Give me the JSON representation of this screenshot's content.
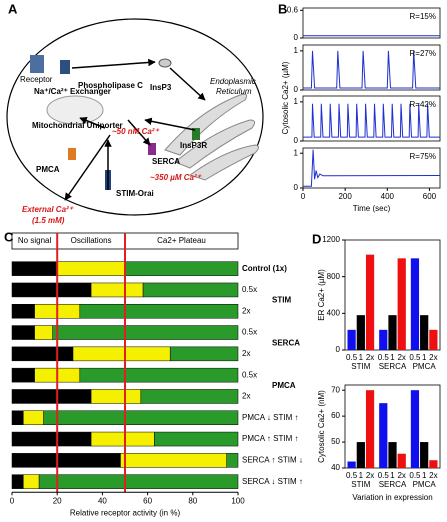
{
  "diagram": {
    "label": "A",
    "receptor": "Receptor",
    "plc": "Phospholipase C",
    "insp3": "InsP3",
    "er": [
      "Endoplasmic",
      "Reticulum"
    ],
    "exchanger": "Na⁺/Ca²⁺ Exchanger",
    "uniporter": "Mitochondrial Uniporter",
    "cyto_ca": "~50 nM Ca²⁺",
    "insp3r": "InsP3R",
    "serca": "SERCA",
    "er_ca": "~350 µM Ca²⁺",
    "pmca": "PMCA",
    "stim": "STIM-Orai",
    "external": [
      "External Ca²⁺",
      "(1.5 mM)"
    ]
  },
  "chart_data": [
    {
      "type": "line",
      "panel_label": "B",
      "xlabel": "Time (sec)",
      "ylabel": "Cytosolic Ca2+ (µM)",
      "xlim": [
        0,
        650
      ],
      "xticks": [
        0,
        200,
        400,
        600
      ],
      "series": [
        {
          "name": "R=15%",
          "color": "#1f2fd0",
          "ylim": [
            0,
            0.65
          ],
          "yticks": [
            0,
            0.6
          ],
          "x": [
            0,
            650
          ],
          "values": [
            0.05,
            0.05
          ]
        },
        {
          "name": "R=27%",
          "color": "#1f2fd0",
          "ylim": [
            0,
            1.15
          ],
          "yticks": [
            0,
            1
          ],
          "x": [
            0,
            40,
            45,
            55,
            160,
            165,
            175,
            280,
            285,
            295,
            400,
            405,
            415,
            520,
            525,
            535,
            650
          ],
          "values": [
            0.05,
            0.05,
            1,
            0.05,
            0.05,
            1,
            0.05,
            0.05,
            1,
            0.05,
            0.05,
            1,
            0.05,
            0.05,
            1,
            0.05,
            0.05
          ]
        },
        {
          "name": "R=42%",
          "color": "#1f2fd0",
          "ylim": [
            0,
            1.15
          ],
          "yticks": [
            0,
            1
          ],
          "x": [
            0,
            42,
            45,
            53,
            84,
            87,
            95,
            126,
            129,
            137,
            168,
            171,
            179,
            210,
            213,
            221,
            252,
            255,
            263,
            294,
            297,
            305,
            336,
            339,
            347,
            378,
            381,
            389,
            420,
            423,
            431,
            462,
            465,
            473,
            504,
            507,
            515,
            546,
            549,
            557,
            588,
            591,
            599,
            650
          ],
          "values": [
            0.1,
            0.1,
            0.95,
            0.1,
            0.1,
            0.95,
            0.1,
            0.1,
            0.95,
            0.1,
            0.1,
            0.95,
            0.1,
            0.1,
            0.95,
            0.1,
            0.1,
            0.95,
            0.1,
            0.1,
            0.95,
            0.1,
            0.1,
            0.95,
            0.1,
            0.1,
            0.95,
            0.1,
            0.1,
            0.95,
            0.1,
            0.1,
            0.95,
            0.1,
            0.1,
            0.95,
            0.1,
            0.1,
            0.95,
            0.1,
            0.1,
            0.95,
            0.1,
            0.1
          ]
        },
        {
          "name": "R=75%",
          "color": "#1f2fd0",
          "ylim": [
            0,
            1.15
          ],
          "yticks": [
            0,
            1
          ],
          "x": [
            0,
            40,
            48,
            55,
            62,
            70,
            80,
            95,
            650
          ],
          "values": [
            0.05,
            0.05,
            1.1,
            0.25,
            0.5,
            0.3,
            0.4,
            0.35,
            0.36
          ]
        }
      ]
    },
    {
      "type": "barh_stacked",
      "panel_label": "C",
      "xlabel": "Relative receptor activity (in %)",
      "xlim": [
        0,
        100
      ],
      "xticks": [
        0,
        20,
        40,
        60,
        80,
        100
      ],
      "vlines": [
        20,
        50
      ],
      "vline_color": "#e02020",
      "categories": [
        "Control (1x)",
        "0.5x",
        "2x",
        "0.5x",
        "2x",
        "0.5x",
        "2x",
        "PMCA ↓ STIM ↑",
        "PMCA ↑ STIM ↑",
        "SERCA ↑ STIM ↓",
        "SERCA ↓ STIM ↑"
      ],
      "groups": [
        "STIM",
        "SERCA",
        "PMCA"
      ],
      "series": [
        {
          "name": "No signal",
          "color": "#000000",
          "values": [
            20,
            35,
            10,
            10,
            27,
            10,
            35,
            5,
            35,
            48,
            5
          ]
        },
        {
          "name": "Oscillations",
          "color": "#f5f000",
          "values": [
            30,
            23,
            20,
            8,
            43,
            20,
            22,
            9,
            28,
            47,
            7
          ]
        },
        {
          "name": "Ca2+ Plateau",
          "color": "#2a9a2a",
          "values": [
            50,
            42,
            70,
            82,
            30,
            70,
            43,
            86,
            37,
            5,
            88
          ]
        }
      ]
    },
    {
      "type": "bar",
      "panel_label": "D",
      "ylabel": "ER Ca2+ (µM)",
      "ylim": [
        0,
        1200
      ],
      "yticks": [
        0,
        400,
        800,
        1200
      ],
      "categories": [
        "0.5",
        "1",
        "2x",
        "0.5",
        "1",
        "2x",
        "0.5",
        "1",
        "2x"
      ],
      "groups": [
        "STIM",
        "SERCA",
        "PMCA"
      ],
      "values": [
        220,
        380,
        1040,
        220,
        380,
        1000,
        1000,
        380,
        220
      ],
      "colors": [
        "#1010ee",
        "#000000",
        "#ee1010",
        "#1010ee",
        "#000000",
        "#ee1010",
        "#1010ee",
        "#000000",
        "#ee1010"
      ]
    },
    {
      "type": "bar",
      "ylabel": "Cytosolic Ca2+ (nM)",
      "xlabel": "Variation in expression",
      "ylim": [
        40,
        72
      ],
      "yticks": [
        40,
        50,
        60,
        70
      ],
      "categories": [
        "0.5",
        "1",
        "2x",
        "0.5",
        "1",
        "2x",
        "0.5",
        "1",
        "2x"
      ],
      "groups": [
        "STIM",
        "SERCA",
        "PMCA"
      ],
      "values": [
        42.5,
        50,
        70,
        65,
        50,
        45.5,
        70,
        50,
        43
      ],
      "colors": [
        "#1010ee",
        "#000000",
        "#ee1010",
        "#1010ee",
        "#000000",
        "#ee1010",
        "#1010ee",
        "#000000",
        "#ee1010"
      ]
    }
  ]
}
